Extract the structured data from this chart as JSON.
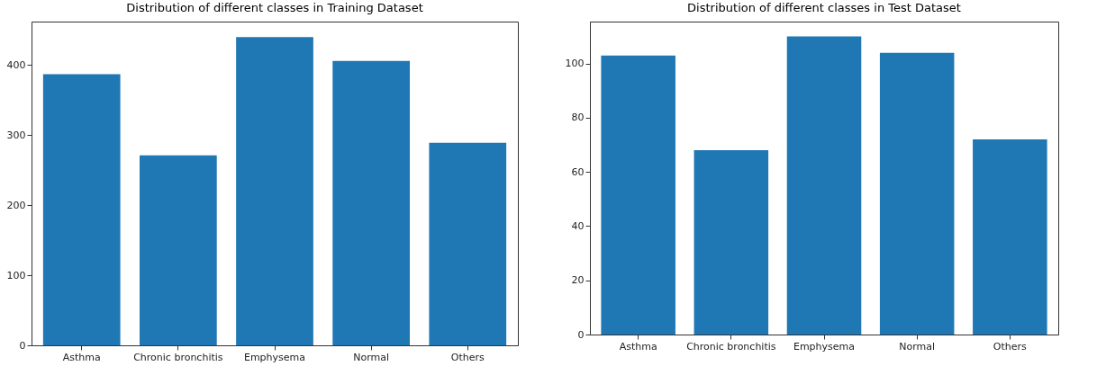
{
  "chart_data": [
    {
      "type": "bar",
      "title": "Distribution of different classes in Training Dataset",
      "categories": [
        "Asthma",
        "Chronic bronchitis",
        "Emphysema",
        "Normal",
        "Others"
      ],
      "values": [
        387,
        271,
        440,
        406,
        289
      ],
      "color": "#1f77b4",
      "ylim": [
        0,
        462
      ],
      "yticks": [
        0,
        100,
        200,
        300,
        400
      ],
      "grid": false
    },
    {
      "type": "bar",
      "title": "Distribution of different classes in Test Dataset",
      "categories": [
        "Asthma",
        "Chronic bronchitis",
        "Emphysema",
        "Normal",
        "Others"
      ],
      "values": [
        103,
        68,
        110,
        104,
        72
      ],
      "color": "#1f77b4",
      "ylim": [
        0,
        115.5
      ],
      "yticks": [
        0,
        20,
        40,
        60,
        80,
        100
      ],
      "grid": false
    }
  ]
}
